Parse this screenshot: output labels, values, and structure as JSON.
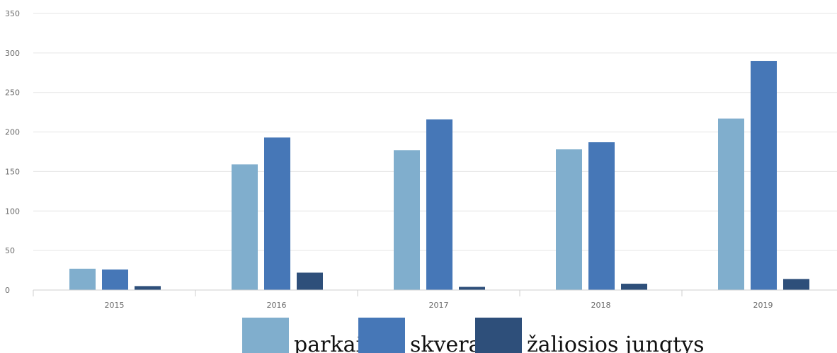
{
  "chart_data": {
    "type": "bar",
    "title": "",
    "xlabel": "",
    "ylabel": "",
    "categories": [
      "2015",
      "2016",
      "2017",
      "2018",
      "2019"
    ],
    "series": [
      {
        "name": "parkai",
        "color": "#80aecd",
        "values": [
          27,
          159,
          177,
          178,
          217
        ]
      },
      {
        "name": "skverai",
        "color": "#4677b7",
        "values": [
          26,
          193,
          216,
          187,
          290
        ]
      },
      {
        "name": "žaliosios jungtys",
        "color": "#2e4f7a",
        "values": [
          5,
          22,
          4,
          8,
          14
        ]
      }
    ],
    "ylim": [
      0,
      350
    ],
    "yticks": [
      0,
      50,
      100,
      150,
      200,
      250,
      300,
      350
    ],
    "grid": true,
    "legend_position": "bottom-center"
  }
}
